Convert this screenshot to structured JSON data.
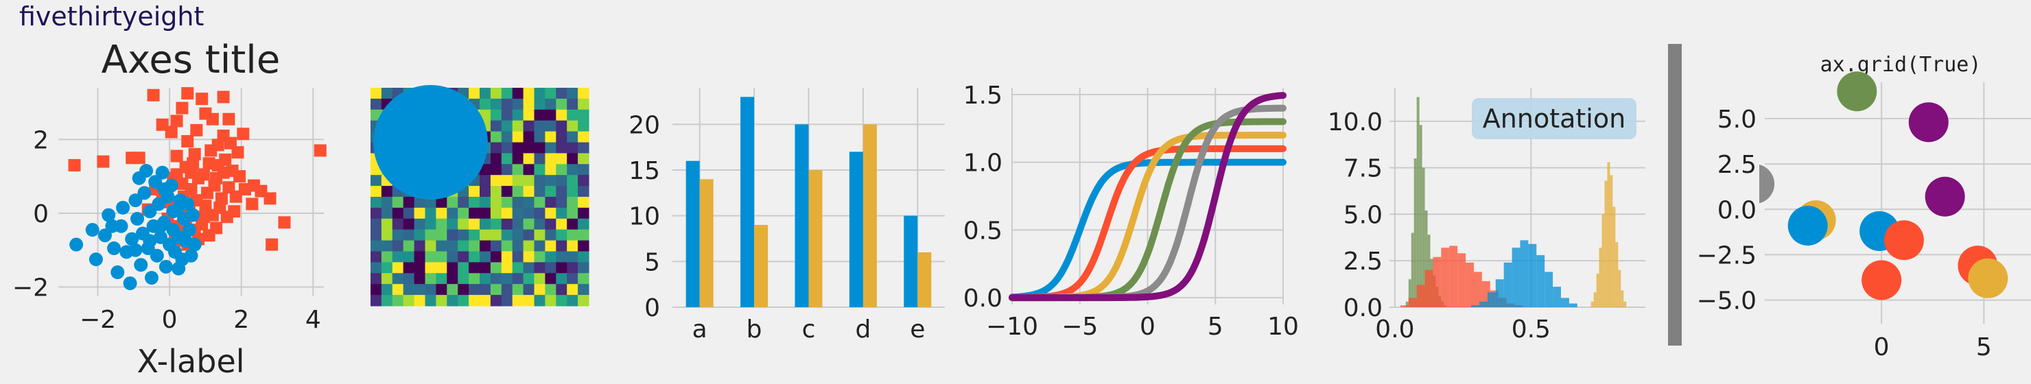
{
  "style_title": "fivethirtyeight",
  "colors": {
    "background": "#f0f0f0",
    "grid": "#cbcbcb",
    "blue": "#008fd5",
    "red": "#fc4f30",
    "yellow": "#e5ae38",
    "green": "#6d904f",
    "gray": "#8b8b8b",
    "purple": "#810f7c",
    "annotation_box": "#b8d6e8",
    "separator": "#808080"
  },
  "chart_data": [
    {
      "id": "scatter",
      "type": "scatter",
      "title": "Axes title",
      "xlabel": "X-label",
      "ylabel": "",
      "xlim": [
        -3.1,
        4.3
      ],
      "ylim": [
        -2.25,
        3.4
      ],
      "xticks": [
        -2,
        0,
        2,
        4
      ],
      "yticks": [
        -2,
        0,
        2
      ],
      "tick_labels_x": [
        "−2",
        "0",
        "2",
        "4"
      ],
      "tick_labels_y": [
        "−2",
        "0",
        "2"
      ],
      "grid": true,
      "series": [
        {
          "marker": "square",
          "color": "#fc4f30",
          "points": [
            [
              -2.65,
              1.3
            ],
            [
              -1.85,
              1.4
            ],
            [
              -1.05,
              1.5
            ],
            [
              -0.85,
              1.5
            ],
            [
              -0.45,
              3.2
            ],
            [
              -0.2,
              2.4
            ],
            [
              0.05,
              2.2
            ],
            [
              0.2,
              2.5
            ],
            [
              0.35,
              2.85
            ],
            [
              0.5,
              3.25
            ],
            [
              0.5,
              1.95
            ],
            [
              0.75,
              2.25
            ],
            [
              0.9,
              3.1
            ],
            [
              1.2,
              2.55
            ],
            [
              1.5,
              3.15
            ],
            [
              1.5,
              2.1
            ],
            [
              1.7,
              1.9
            ],
            [
              2.05,
              2.15
            ],
            [
              1.9,
              1.65
            ],
            [
              1.35,
              1.85
            ],
            [
              0.2,
              1.55
            ],
            [
              0.45,
              1.25
            ],
            [
              0.7,
              1.6
            ],
            [
              0.95,
              1.05
            ],
            [
              1.15,
              1.7
            ],
            [
              1.35,
              1.3
            ],
            [
              1.55,
              1.45
            ],
            [
              1.75,
              1.15
            ],
            [
              1.95,
              1.0
            ],
            [
              0.1,
              0.95
            ],
            [
              0.35,
              0.8
            ],
            [
              0.6,
              0.65
            ],
            [
              0.8,
              0.95
            ],
            [
              1.05,
              0.55
            ],
            [
              1.25,
              0.75
            ],
            [
              1.45,
              0.4
            ],
            [
              1.65,
              0.7
            ],
            [
              1.85,
              0.45
            ],
            [
              2.1,
              0.65
            ],
            [
              2.35,
              0.75
            ],
            [
              2.55,
              0.6
            ],
            [
              2.8,
              0.4
            ],
            [
              3.2,
              -0.25
            ],
            [
              2.85,
              -0.85
            ],
            [
              0.0,
              0.3
            ],
            [
              0.3,
              0.2
            ],
            [
              0.55,
              0.05
            ],
            [
              0.75,
              0.35
            ],
            [
              1.0,
              0.2
            ],
            [
              1.2,
              -0.05
            ],
            [
              1.4,
              0.15
            ],
            [
              1.6,
              -0.1
            ],
            [
              1.8,
              0.05
            ],
            [
              -0.2,
              0.5
            ],
            [
              -0.05,
              -0.15
            ],
            [
              0.25,
              -0.35
            ],
            [
              0.45,
              -0.25
            ],
            [
              0.7,
              -0.45
            ],
            [
              0.9,
              -0.3
            ],
            [
              1.1,
              -0.6
            ],
            [
              1.3,
              -0.4
            ],
            [
              0.15,
              -0.75
            ],
            [
              0.5,
              -0.85
            ],
            [
              0.8,
              -0.7
            ],
            [
              -0.4,
              0.65
            ],
            [
              0.65,
              1.35
            ],
            [
              1.0,
              2.7
            ],
            [
              1.1,
              1.35
            ],
            [
              0.6,
              1.1
            ],
            [
              1.65,
              2.55
            ],
            [
              2.3,
              0.25
            ],
            [
              4.2,
              1.7
            ],
            [
              -0.6,
              0.1
            ],
            [
              0.95,
              -0.1
            ],
            [
              1.3,
              0.95
            ],
            [
              0.4,
              0.45
            ],
            [
              1.5,
              1.1
            ],
            [
              0.2,
              1.05
            ]
          ]
        },
        {
          "marker": "circle",
          "color": "#008fd5",
          "points": [
            [
              -2.6,
              -0.85
            ],
            [
              -2.15,
              -0.45
            ],
            [
              -2.05,
              -1.25
            ],
            [
              -1.8,
              -0.6
            ],
            [
              -1.7,
              -0.05
            ],
            [
              -1.55,
              -0.95
            ],
            [
              -1.45,
              -1.6
            ],
            [
              -1.35,
              -0.35
            ],
            [
              -1.3,
              0.15
            ],
            [
              -1.2,
              -1.05
            ],
            [
              -1.1,
              -1.9
            ],
            [
              -1.05,
              -0.7
            ],
            [
              -0.95,
              0.35
            ],
            [
              -0.9,
              -0.15
            ],
            [
              -0.8,
              -1.4
            ],
            [
              -0.75,
              -0.55
            ],
            [
              -0.7,
              0.55
            ],
            [
              -0.6,
              -0.95
            ],
            [
              -0.55,
              0.05
            ],
            [
              -0.5,
              -1.75
            ],
            [
              -0.45,
              -0.35
            ],
            [
              -0.4,
              0.85
            ],
            [
              -0.35,
              -1.15
            ],
            [
              -0.3,
              0.25
            ],
            [
              -0.25,
              -0.65
            ],
            [
              -0.2,
              1.1
            ],
            [
              -0.15,
              -0.25
            ],
            [
              -0.1,
              -1.45
            ],
            [
              -0.05,
              0.45
            ],
            [
              0.0,
              -0.85
            ],
            [
              0.05,
              0.75
            ],
            [
              0.1,
              -0.45
            ],
            [
              0.15,
              -1.05
            ],
            [
              0.2,
              0.1
            ],
            [
              0.25,
              -0.65
            ],
            [
              0.3,
              0.35
            ],
            [
              0.35,
              -1.25
            ],
            [
              0.4,
              -0.15
            ],
            [
              0.45,
              -0.75
            ],
            [
              0.5,
              0.25
            ],
            [
              0.55,
              -0.45
            ],
            [
              0.6,
              -1.15
            ],
            [
              0.65,
              -0.05
            ],
            [
              0.7,
              -0.85
            ],
            [
              -0.65,
              1.15
            ],
            [
              -0.85,
              0.95
            ],
            [
              -0.15,
              0.65
            ],
            [
              0.25,
              -1.5
            ],
            [
              -0.55,
              -0.75
            ],
            [
              -0.25,
              -0.35
            ],
            [
              0.1,
              0.05
            ],
            [
              -1.6,
              -0.35
            ],
            [
              -0.95,
              -1.0
            ]
          ]
        }
      ]
    },
    {
      "id": "image",
      "type": "heatmap",
      "rows": 20,
      "cols": 20,
      "circle": {
        "color": "#008fd5",
        "center": [
          5,
          5
        ],
        "radius": 5
      }
    },
    {
      "id": "bars",
      "type": "bar",
      "categories": [
        "a",
        "b",
        "c",
        "d",
        "e"
      ],
      "series": [
        {
          "color": "#008fd5",
          "values": [
            16,
            23,
            20,
            17,
            10
          ]
        },
        {
          "color": "#e5ae38",
          "values": [
            14,
            9,
            15,
            20,
            6
          ]
        }
      ],
      "ylim": [
        0,
        24
      ],
      "yticks": [
        0,
        5,
        10,
        15,
        20
      ],
      "tick_labels_y": [
        "0",
        "5",
        "10",
        "15",
        "20"
      ],
      "grid": true
    },
    {
      "id": "curves",
      "type": "line",
      "xlim": [
        -10,
        10
      ],
      "ylim": [
        -0.05,
        1.55
      ],
      "xticks": [
        -10,
        -5,
        0,
        5,
        10
      ],
      "yticks": [
        0.0,
        0.5,
        1.0,
        1.5
      ],
      "tick_labels_x": [
        "−10",
        "−5",
        "0",
        "5",
        "10"
      ],
      "tick_labels_y": [
        "0.0",
        "0.5",
        "1.0",
        "1.5"
      ],
      "grid": true,
      "series": [
        {
          "color": "#008fd5",
          "shift": -5,
          "amplitude": 1.0
        },
        {
          "color": "#fc4f30",
          "shift": -3,
          "amplitude": 1.1
        },
        {
          "color": "#e5ae38",
          "shift": -1,
          "amplitude": 1.2
        },
        {
          "color": "#6d904f",
          "shift": 1,
          "amplitude": 1.3
        },
        {
          "color": "#8b8b8b",
          "shift": 3,
          "amplitude": 1.4
        },
        {
          "color": "#810f7c",
          "shift": 5,
          "amplitude": 1.5
        }
      ]
    },
    {
      "id": "hist",
      "type": "histogram",
      "xlim": [
        -0.02,
        0.92
      ],
      "ylim": [
        0,
        11.8
      ],
      "xticks": [
        0.0,
        0.5
      ],
      "yticks": [
        0.0,
        2.5,
        5.0,
        7.5,
        10.0
      ],
      "tick_labels_x": [
        "0.0",
        "0.5"
      ],
      "tick_labels_y": [
        "0.0",
        "2.5",
        "5.0",
        "7.5",
        "10.0"
      ],
      "annotation": "Annotation",
      "grid": true,
      "series": [
        {
          "color": "#6d904f",
          "start": 0.04,
          "width": 0.01,
          "values": [
            0.3,
            1.5,
            4.0,
            8.0,
            11.3,
            9.8,
            7.5,
            5.2,
            3.9,
            2.6,
            1.7,
            1.1,
            0.6,
            0.3,
            0.1
          ]
        },
        {
          "color": "#fc4f30",
          "start": 0.02,
          "width": 0.03,
          "values": [
            0.1,
            0.5,
            1.2,
            2.0,
            2.7,
            3.2,
            3.3,
            2.9,
            2.4,
            1.9,
            1.4,
            0.9,
            0.5,
            0.2,
            0.1
          ]
        },
        {
          "color": "#008fd5",
          "start": 0.28,
          "width": 0.03,
          "values": [
            0.1,
            0.3,
            0.8,
            1.5,
            2.4,
            3.2,
            3.6,
            3.4,
            2.8,
            1.9,
            1.1,
            0.5,
            0.2
          ]
        },
        {
          "color": "#e5ae38",
          "start": 0.72,
          "width": 0.01,
          "values": [
            0.3,
            0.8,
            1.8,
            3.2,
            5.0,
            6.8,
            7.8,
            7.1,
            5.4,
            3.5,
            2.0,
            0.9,
            0.3
          ]
        }
      ]
    },
    {
      "id": "grid_scatter",
      "type": "scatter",
      "title": "ax.grid(True)",
      "xlim": [
        -5.7,
        7.3
      ],
      "ylim": [
        -6.3,
        7.0
      ],
      "xticks": [
        0,
        5
      ],
      "yticks": [
        -5.0,
        -2.5,
        0.0,
        2.5,
        5.0
      ],
      "tick_labels_x": [
        "0",
        "5"
      ],
      "tick_labels_y": [
        "−5.0",
        "−2.5",
        "0.0",
        "2.5",
        "5.0"
      ],
      "grid": true,
      "points": [
        {
          "x": -1.2,
          "y": 6.5,
          "color": "#6d904f"
        },
        {
          "x": 2.3,
          "y": 4.8,
          "color": "#810f7c"
        },
        {
          "x": -6.2,
          "y": 1.4,
          "color": "#8b8b8b"
        },
        {
          "x": 3.1,
          "y": 0.7,
          "color": "#810f7c"
        },
        {
          "x": -3.2,
          "y": -0.6,
          "color": "#e5ae38"
        },
        {
          "x": -3.6,
          "y": -0.9,
          "color": "#008fd5"
        },
        {
          "x": -0.1,
          "y": -1.2,
          "color": "#008fd5"
        },
        {
          "x": 1.1,
          "y": -1.7,
          "color": "#fc4f30"
        },
        {
          "x": 0.0,
          "y": -3.9,
          "color": "#fc4f30"
        },
        {
          "x": 4.7,
          "y": -3.1,
          "color": "#fc4f30"
        },
        {
          "x": 5.2,
          "y": -3.8,
          "color": "#e5ae38"
        }
      ]
    }
  ]
}
